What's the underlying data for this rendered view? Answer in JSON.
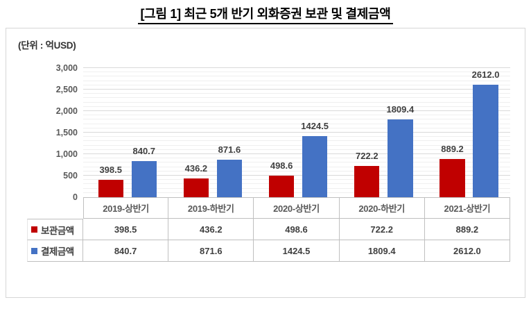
{
  "title": "[그림 1] 최근 5개 반기 외화증권 보관 및 결제금액",
  "unit_label": "(단위 : 억USD)",
  "chart_data": {
    "type": "bar",
    "title": "[그림 1] 최근 5개 반기 외화증권 보관 및 결제금액",
    "unit": "(단위 : 억USD)",
    "categories": [
      "2019-상반기",
      "2019-하반기",
      "2020-상반기",
      "2020-하반기",
      "2021-상반기"
    ],
    "series": [
      {
        "name": "보관금액",
        "color": "#C00000",
        "values": [
          398.5,
          436.2,
          498.6,
          722.2,
          889.2
        ]
      },
      {
        "name": "결제금액",
        "color": "#4472C4",
        "values": [
          840.7,
          871.6,
          1424.5,
          1809.4,
          2612.0
        ]
      }
    ],
    "ylim": [
      0,
      3000
    ],
    "y_major": 500,
    "y_minor": 100,
    "y_ticks": [
      "3,000",
      "2,500",
      "2,000",
      "1,500",
      "1,000",
      "500",
      "0"
    ],
    "grid": true,
    "data_labels": true,
    "legend_position": "data-table-left"
  },
  "colors": {
    "bar_custody": "#C00000",
    "bar_settlement": "#4472C4",
    "gridline_major": "#D9D9D9",
    "gridline_minor": "#EFEFEF",
    "table_border": "#BFBFBF",
    "axis_text": "#595959",
    "label_text": "#404040"
  }
}
